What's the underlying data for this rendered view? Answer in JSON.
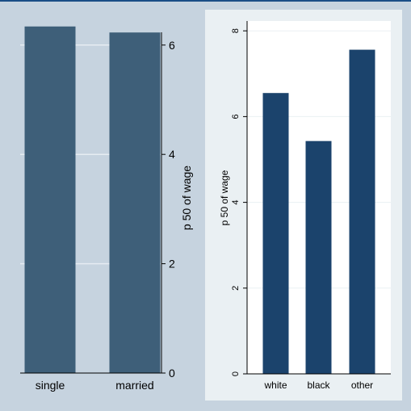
{
  "chart_data": [
    {
      "type": "bar",
      "categories": [
        "single",
        "married"
      ],
      "values": [
        6.34,
        6.23
      ],
      "ylabel": "p 50 of wage",
      "ylim": [
        0,
        6.3
      ],
      "yticks": [
        "0",
        "2",
        "4",
        "6"
      ],
      "yaxis_side": "right",
      "grid": true,
      "bar_color": "#3e5f79",
      "background": "#c6d3df"
    },
    {
      "type": "bar",
      "categories": [
        "white",
        "black",
        "other"
      ],
      "values": [
        6.55,
        5.43,
        7.56
      ],
      "ylabel": "p 50 of wage",
      "ylim": [
        0,
        8.2
      ],
      "yticks": [
        "0",
        "2",
        "4",
        "6",
        "8"
      ],
      "yaxis_side": "left",
      "grid": true,
      "bar_color": "#1b436c",
      "background": "#eaf0f3"
    }
  ]
}
